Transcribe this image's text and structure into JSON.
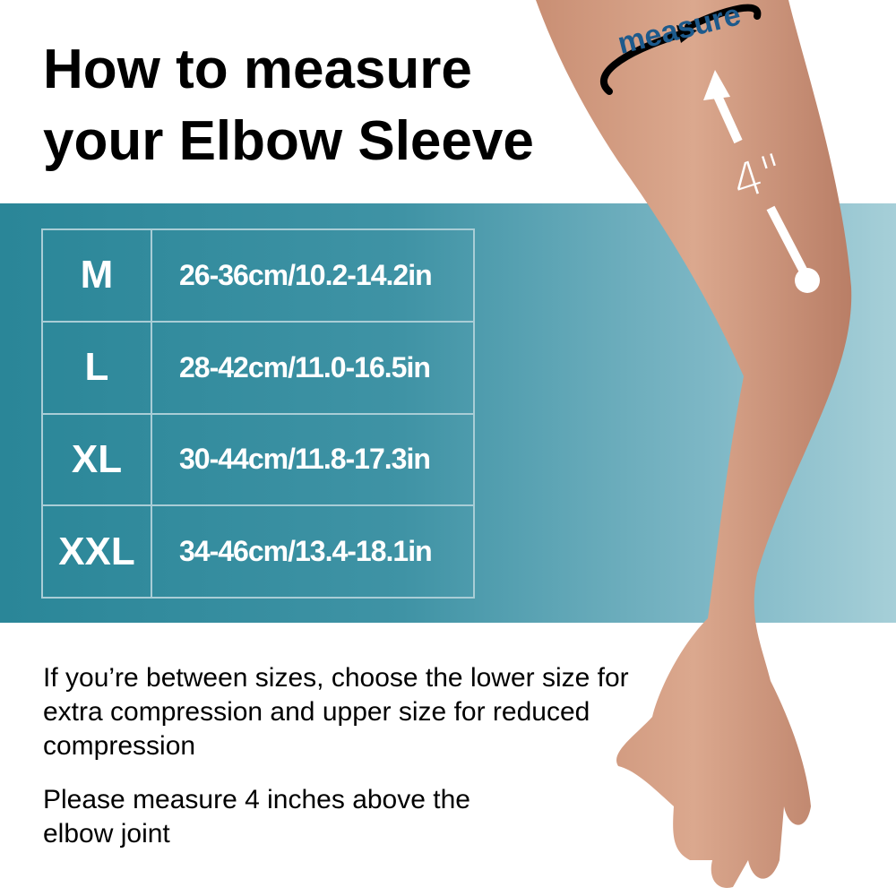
{
  "title": "How to measure your Elbow Sleeve",
  "size_table": {
    "rows": [
      {
        "size": "M",
        "range": "26-36cm/10.2-14.2in"
      },
      {
        "size": "L",
        "range": "28-42cm/11.0-16.5in"
      },
      {
        "size": "XL",
        "range": "30-44cm/11.8-17.3in"
      },
      {
        "size": "XXL",
        "range": "34-46cm/13.4-18.1in"
      }
    ]
  },
  "diagram": {
    "measure_label": "measure",
    "distance_label": "4\""
  },
  "notes": {
    "between_sizes": "If you’re between sizes, choose the lower size for extra compression and upper size for reduced compression",
    "measure_instruction": "Please measure 4 inches above the elbow joint"
  },
  "colors": {
    "band": "#2a8698",
    "measure_text": "#1d5a8c",
    "skin": "#d9a48a"
  }
}
